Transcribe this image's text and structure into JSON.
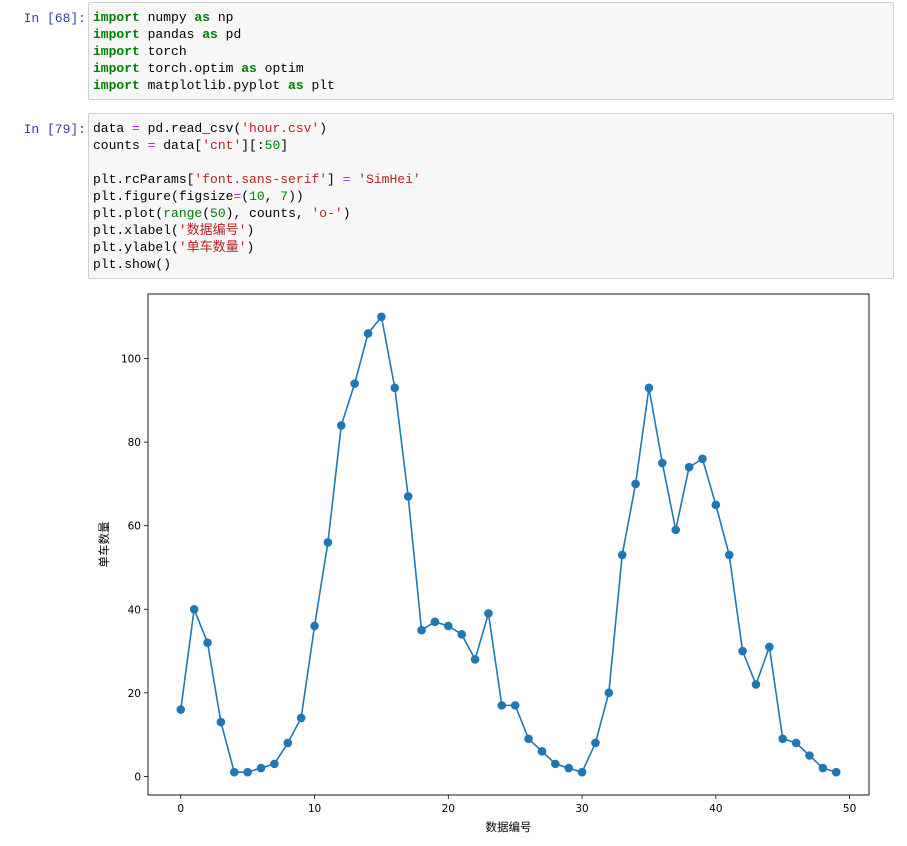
{
  "cells": [
    {
      "prompt": "In  [68]:",
      "lines": [
        [
          [
            "import",
            "kw"
          ],
          [
            " numpy ",
            ""
          ],
          [
            "as",
            "kw"
          ],
          [
            " np",
            ""
          ]
        ],
        [
          [
            "import",
            "kw"
          ],
          [
            " pandas ",
            ""
          ],
          [
            "as",
            "kw"
          ],
          [
            " pd",
            ""
          ]
        ],
        [
          [
            "import",
            "kw"
          ],
          [
            " torch",
            ""
          ]
        ],
        [
          [
            "import",
            "kw"
          ],
          [
            " torch.optim ",
            ""
          ],
          [
            "as",
            "kw"
          ],
          [
            " optim",
            ""
          ]
        ],
        [
          [
            "import",
            "kw"
          ],
          [
            " matplotlib.pyplot ",
            ""
          ],
          [
            "as",
            "kw"
          ],
          [
            " plt",
            ""
          ]
        ]
      ]
    },
    {
      "prompt": "In  [79]:",
      "lines": [
        [
          [
            "data ",
            ""
          ],
          [
            "=",
            "op"
          ],
          [
            " pd.read_csv(",
            ""
          ],
          [
            "'hour.csv'",
            "str"
          ],
          [
            ")",
            ""
          ]
        ],
        [
          [
            "counts ",
            ""
          ],
          [
            "=",
            "op"
          ],
          [
            " data[",
            ""
          ],
          [
            "'cnt'",
            "str"
          ],
          [
            "][:",
            ""
          ],
          [
            "50",
            "num"
          ],
          [
            "]",
            ""
          ]
        ],
        [],
        [
          [
            "plt.rcParams[",
            ""
          ],
          [
            "'font.sans-serif'",
            "str"
          ],
          [
            "] ",
            ""
          ],
          [
            "=",
            "op"
          ],
          [
            " ",
            ""
          ],
          [
            "'SimHei'",
            "str"
          ]
        ],
        [
          [
            "plt.figure(figsize",
            ""
          ],
          [
            "=",
            "op"
          ],
          [
            "(",
            ""
          ],
          [
            "10",
            "num"
          ],
          [
            ", ",
            ""
          ],
          [
            "7",
            "num"
          ],
          [
            "))",
            ""
          ]
        ],
        [
          [
            "plt.plot(",
            ""
          ],
          [
            "range",
            "bi"
          ],
          [
            "(",
            ""
          ],
          [
            "50",
            "num"
          ],
          [
            "), counts, ",
            ""
          ],
          [
            "'o-'",
            "str"
          ],
          [
            ")",
            ""
          ]
        ],
        [
          [
            "plt.xlabel(",
            ""
          ],
          [
            "'数据编号'",
            "str"
          ],
          [
            ")",
            ""
          ]
        ],
        [
          [
            "plt.ylabel(",
            ""
          ],
          [
            "'单车数量'",
            "str"
          ],
          [
            ")",
            ""
          ]
        ],
        [
          [
            "plt.show()",
            ""
          ]
        ]
      ]
    }
  ],
  "chart_data": {
    "type": "line",
    "marker": "o",
    "color": "#1f77b4",
    "x": [
      0,
      1,
      2,
      3,
      4,
      5,
      6,
      7,
      8,
      9,
      10,
      11,
      12,
      13,
      14,
      15,
      16,
      17,
      18,
      19,
      20,
      21,
      22,
      23,
      24,
      25,
      26,
      27,
      28,
      29,
      30,
      31,
      32,
      33,
      34,
      35,
      36,
      37,
      38,
      39,
      40,
      41,
      42,
      43,
      44,
      45,
      46,
      47,
      48,
      49
    ],
    "values": [
      16,
      40,
      32,
      13,
      1,
      1,
      2,
      3,
      8,
      14,
      36,
      56,
      84,
      94,
      106,
      110,
      93,
      67,
      35,
      37,
      36,
      34,
      28,
      39,
      17,
      17,
      9,
      6,
      3,
      2,
      1,
      8,
      20,
      53,
      70,
      93,
      75,
      59,
      74,
      76,
      65,
      53,
      30,
      22,
      31,
      9,
      8,
      5,
      2,
      1
    ],
    "xlabel": "数据编号",
    "ylabel": "单车数量",
    "xticks": [
      "0",
      "10",
      "20",
      "30",
      "40",
      "50"
    ],
    "yticks": [
      "0",
      "20",
      "40",
      "60",
      "80",
      "100"
    ],
    "xlim": [
      -2.45,
      51.45
    ],
    "ylim": [
      -4.45,
      115.45
    ]
  }
}
